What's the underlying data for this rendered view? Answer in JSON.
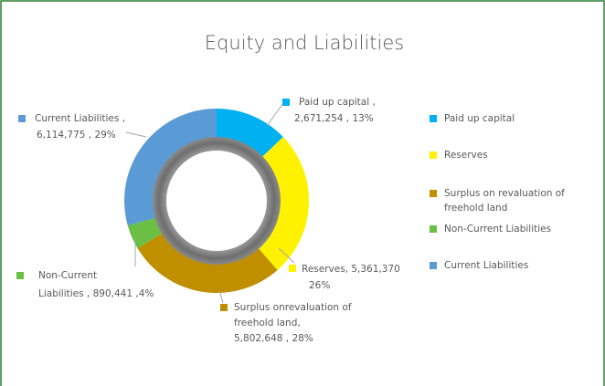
{
  "chart_data": {
    "type": "donut",
    "title": "Equity and Liabilities",
    "categories": [
      "Paid up capital",
      "Reserves",
      "Surplus on revaluation of freehold land",
      "Non-Current Liabilities",
      "Current Liabilities"
    ],
    "values": [
      2671254,
      5361370,
      5802648,
      890441,
      6114775
    ],
    "value_labels": [
      [
        "Paid up capital ,",
        "2,671,254 , 13%"
      ],
      [
        "Reserves, 5,361,370",
        "26%"
      ],
      [
        "Surplus onrevaluation of",
        "freehold land,",
        "5,802,648 , 28%"
      ],
      [
        "Non-Current",
        "Liabilities , 890,441 ,4%"
      ],
      [
        "Current Liabilities ,",
        "6,114,775 , 29%"
      ]
    ],
    "colors": [
      "#00b0f0",
      "#fef200",
      "#bf8f00",
      "#6abf45",
      "#5b9bd5"
    ],
    "legend": "right"
  }
}
